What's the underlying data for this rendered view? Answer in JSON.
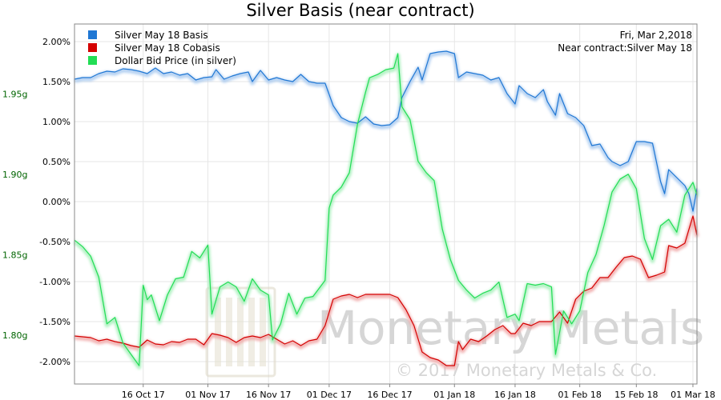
{
  "chart_data": {
    "type": "line",
    "title": "Silver Basis (near contract)",
    "info": {
      "date_line": "Fri, Mar 2,2018",
      "contract_line": "Near contract:Silver May 18"
    },
    "watermark": {
      "name": "Monetary Metals",
      "copyright": "© 2017 Monetary Metals & Co."
    },
    "x_ticks": [
      "16 Oct 17",
      "01 Nov 17",
      "16 Nov 17",
      "01 Dec 17",
      "16 Dec 17",
      "01 Jan 18",
      "16 Jan 18",
      "01 Feb 18",
      "15 Feb 18",
      "01 Mar 18"
    ],
    "x_tick_dates": [
      "2017-10-16",
      "2017-11-01",
      "2017-11-16",
      "2017-12-01",
      "2017-12-16",
      "2018-01-01",
      "2018-01-16",
      "2018-02-01",
      "2018-02-15",
      "2018-03-01"
    ],
    "x_range": [
      "2017-09-29",
      "2018-03-02"
    ],
    "y_left": {
      "ticks": [
        "2.00%",
        "1.50%",
        "1.00%",
        "0.50%",
        "0.00%",
        "-0.50%",
        "-1.00%",
        "-1.50%",
        "-2.00%"
      ],
      "tick_values": [
        2.0,
        1.5,
        1.0,
        0.5,
        0.0,
        -0.5,
        -1.0,
        -1.5,
        -2.0
      ],
      "range": [
        -2.28,
        2.22
      ],
      "color": "#000000"
    },
    "y_right_axis_left_side": {
      "ticks": [
        "1.95g",
        "1.90g",
        "1.85g",
        "1.80g"
      ],
      "tick_values": [
        1.95,
        1.9,
        1.85,
        1.8
      ],
      "range": [
        1.7696,
        1.9934
      ],
      "color": "#006400"
    },
    "grid": true,
    "legend": "top-left",
    "series": [
      {
        "name": "Silver May 18 Basis",
        "color": "#1f77d4",
        "glow": "#aacbf0",
        "axis": "left",
        "points": [
          [
            "2017-09-29",
            1.53
          ],
          [
            "2017-10-01",
            1.55
          ],
          [
            "2017-10-03",
            1.55
          ],
          [
            "2017-10-05",
            1.6
          ],
          [
            "2017-10-07",
            1.63
          ],
          [
            "2017-10-09",
            1.62
          ],
          [
            "2017-10-11",
            1.66
          ],
          [
            "2017-10-13",
            1.65
          ],
          [
            "2017-10-15",
            1.63
          ],
          [
            "2017-10-17",
            1.6
          ],
          [
            "2017-10-19",
            1.67
          ],
          [
            "2017-10-21",
            1.6
          ],
          [
            "2017-10-23",
            1.62
          ],
          [
            "2017-10-25",
            1.58
          ],
          [
            "2017-10-27",
            1.6
          ],
          [
            "2017-10-29",
            1.52
          ],
          [
            "2017-10-31",
            1.55
          ],
          [
            "2017-11-02",
            1.56
          ],
          [
            "2017-11-03",
            1.65
          ],
          [
            "2017-11-05",
            1.53
          ],
          [
            "2017-11-07",
            1.57
          ],
          [
            "2017-11-09",
            1.6
          ],
          [
            "2017-11-11",
            1.62
          ],
          [
            "2017-11-12",
            1.5
          ],
          [
            "2017-11-14",
            1.64
          ],
          [
            "2017-11-16",
            1.52
          ],
          [
            "2017-11-18",
            1.55
          ],
          [
            "2017-11-20",
            1.52
          ],
          [
            "2017-11-22",
            1.5
          ],
          [
            "2017-11-24",
            1.59
          ],
          [
            "2017-11-26",
            1.5
          ],
          [
            "2017-11-28",
            1.48
          ],
          [
            "2017-11-30",
            1.48
          ],
          [
            "2017-12-02",
            1.2
          ],
          [
            "2017-12-04",
            1.05
          ],
          [
            "2017-12-06",
            1.0
          ],
          [
            "2017-12-08",
            0.98
          ],
          [
            "2017-12-10",
            1.06
          ],
          [
            "2017-12-12",
            0.97
          ],
          [
            "2017-12-14",
            0.95
          ],
          [
            "2017-12-16",
            0.96
          ],
          [
            "2017-12-18",
            1.05
          ],
          [
            "2017-12-19",
            1.3
          ],
          [
            "2017-12-21",
            1.5
          ],
          [
            "2017-12-23",
            1.68
          ],
          [
            "2017-12-24",
            1.52
          ],
          [
            "2017-12-26",
            1.85
          ],
          [
            "2017-12-28",
            1.87
          ],
          [
            "2017-12-30",
            1.88
          ],
          [
            "2018-01-01",
            1.85
          ],
          [
            "2018-01-02",
            1.55
          ],
          [
            "2018-01-04",
            1.62
          ],
          [
            "2018-01-06",
            1.6
          ],
          [
            "2018-01-08",
            1.58
          ],
          [
            "2018-01-10",
            1.52
          ],
          [
            "2018-01-12",
            1.55
          ],
          [
            "2018-01-14",
            1.35
          ],
          [
            "2018-01-16",
            1.22
          ],
          [
            "2018-01-17",
            1.45
          ],
          [
            "2018-01-19",
            1.35
          ],
          [
            "2018-01-21",
            1.3
          ],
          [
            "2018-01-23",
            1.4
          ],
          [
            "2018-01-24",
            1.25
          ],
          [
            "2018-01-26",
            1.08
          ],
          [
            "2018-01-27",
            1.35
          ],
          [
            "2018-01-29",
            1.1
          ],
          [
            "2018-01-31",
            1.05
          ],
          [
            "2018-02-02",
            0.95
          ],
          [
            "2018-02-04",
            0.7
          ],
          [
            "2018-02-06",
            0.72
          ],
          [
            "2018-02-08",
            0.55
          ],
          [
            "2018-02-09",
            0.5
          ],
          [
            "2018-02-11",
            0.45
          ],
          [
            "2018-02-13",
            0.5
          ],
          [
            "2018-02-15",
            0.75
          ],
          [
            "2018-02-17",
            0.75
          ],
          [
            "2018-02-19",
            0.73
          ],
          [
            "2018-02-21",
            0.25
          ],
          [
            "2018-02-22",
            0.1
          ],
          [
            "2018-02-23",
            0.4
          ],
          [
            "2018-02-25",
            0.3
          ],
          [
            "2018-02-27",
            0.2
          ],
          [
            "2018-02-28",
            0.1
          ],
          [
            "2018-03-01",
            -0.12
          ],
          [
            "2018-03-02",
            0.17
          ]
        ]
      },
      {
        "name": "Silver May 18 Cobasis",
        "color": "#d40000",
        "glow": "#f0a8a8",
        "axis": "left",
        "points": [
          [
            "2017-09-29",
            -1.68
          ],
          [
            "2017-10-01",
            -1.69
          ],
          [
            "2017-10-03",
            -1.7
          ],
          [
            "2017-10-05",
            -1.74
          ],
          [
            "2017-10-07",
            -1.72
          ],
          [
            "2017-10-09",
            -1.75
          ],
          [
            "2017-10-11",
            -1.77
          ],
          [
            "2017-10-13",
            -1.8
          ],
          [
            "2017-10-15",
            -1.82
          ],
          [
            "2017-10-17",
            -1.73
          ],
          [
            "2017-10-19",
            -1.78
          ],
          [
            "2017-10-21",
            -1.79
          ],
          [
            "2017-10-23",
            -1.75
          ],
          [
            "2017-10-25",
            -1.76
          ],
          [
            "2017-10-27",
            -1.72
          ],
          [
            "2017-10-29",
            -1.72
          ],
          [
            "2017-10-31",
            -1.79
          ],
          [
            "2017-11-02",
            -1.65
          ],
          [
            "2017-11-04",
            -1.67
          ],
          [
            "2017-11-06",
            -1.7
          ],
          [
            "2017-11-08",
            -1.76
          ],
          [
            "2017-11-10",
            -1.7
          ],
          [
            "2017-11-12",
            -1.68
          ],
          [
            "2017-11-14",
            -1.7
          ],
          [
            "2017-11-16",
            -1.66
          ],
          [
            "2017-11-18",
            -1.72
          ],
          [
            "2017-11-20",
            -1.78
          ],
          [
            "2017-11-22",
            -1.74
          ],
          [
            "2017-11-24",
            -1.8
          ],
          [
            "2017-11-26",
            -1.74
          ],
          [
            "2017-11-28",
            -1.72
          ],
          [
            "2017-11-30",
            -1.55
          ],
          [
            "2017-12-02",
            -1.22
          ],
          [
            "2017-12-04",
            -1.18
          ],
          [
            "2017-12-06",
            -1.16
          ],
          [
            "2017-12-08",
            -1.2
          ],
          [
            "2017-12-10",
            -1.16
          ],
          [
            "2017-12-12",
            -1.16
          ],
          [
            "2017-12-14",
            -1.16
          ],
          [
            "2017-12-16",
            -1.16
          ],
          [
            "2017-12-18",
            -1.2
          ],
          [
            "2017-12-20",
            -1.35
          ],
          [
            "2017-12-22",
            -1.55
          ],
          [
            "2017-12-24",
            -1.88
          ],
          [
            "2017-12-26",
            -1.95
          ],
          [
            "2017-12-28",
            -1.98
          ],
          [
            "2017-12-30",
            -2.05
          ],
          [
            "2018-01-01",
            -2.05
          ],
          [
            "2018-01-02",
            -1.75
          ],
          [
            "2018-01-03",
            -1.85
          ],
          [
            "2018-01-05",
            -1.72
          ],
          [
            "2018-01-07",
            -1.75
          ],
          [
            "2018-01-09",
            -1.68
          ],
          [
            "2018-01-11",
            -1.6
          ],
          [
            "2018-01-13",
            -1.55
          ],
          [
            "2018-01-15",
            -1.65
          ],
          [
            "2018-01-16",
            -1.65
          ],
          [
            "2018-01-18",
            -1.52
          ],
          [
            "2018-01-20",
            -1.55
          ],
          [
            "2018-01-22",
            -1.5
          ],
          [
            "2018-01-24",
            -1.5
          ],
          [
            "2018-01-25",
            -1.5
          ],
          [
            "2018-01-27",
            -1.38
          ],
          [
            "2018-01-29",
            -1.52
          ],
          [
            "2018-01-31",
            -1.22
          ],
          [
            "2018-02-02",
            -1.12
          ],
          [
            "2018-02-04",
            -1.08
          ],
          [
            "2018-02-06",
            -0.95
          ],
          [
            "2018-02-08",
            -0.95
          ],
          [
            "2018-02-10",
            -0.82
          ],
          [
            "2018-02-12",
            -0.7
          ],
          [
            "2018-02-14",
            -0.68
          ],
          [
            "2018-02-16",
            -0.72
          ],
          [
            "2018-02-18",
            -0.95
          ],
          [
            "2018-02-20",
            -0.92
          ],
          [
            "2018-02-22",
            -0.88
          ],
          [
            "2018-02-23",
            -0.55
          ],
          [
            "2018-02-25",
            -0.58
          ],
          [
            "2018-02-27",
            -0.52
          ],
          [
            "2018-02-28",
            -0.35
          ],
          [
            "2018-03-01",
            -0.18
          ],
          [
            "2018-03-02",
            -0.42
          ]
        ]
      },
      {
        "name": "Dollar Bid Price (in silver)",
        "color": "#22dd55",
        "glow": "#a8f0bc",
        "axis": "right",
        "points": [
          [
            "2017-09-29",
            1.859
          ],
          [
            "2017-10-01",
            1.855
          ],
          [
            "2017-10-03",
            1.849
          ],
          [
            "2017-10-05",
            1.836
          ],
          [
            "2017-10-07",
            1.807
          ],
          [
            "2017-10-09",
            1.811
          ],
          [
            "2017-10-11",
            1.795
          ],
          [
            "2017-10-13",
            1.788
          ],
          [
            "2017-10-15",
            1.781
          ],
          [
            "2017-10-16",
            1.831
          ],
          [
            "2017-10-17",
            1.822
          ],
          [
            "2017-10-18",
            1.825
          ],
          [
            "2017-10-20",
            1.809
          ],
          [
            "2017-10-22",
            1.825
          ],
          [
            "2017-10-24",
            1.835
          ],
          [
            "2017-10-26",
            1.836
          ],
          [
            "2017-10-28",
            1.852
          ],
          [
            "2017-10-30",
            1.848
          ],
          [
            "2017-11-01",
            1.856
          ],
          [
            "2017-11-02",
            1.813
          ],
          [
            "2017-11-04",
            1.83
          ],
          [
            "2017-11-06",
            1.833
          ],
          [
            "2017-11-08",
            1.83
          ],
          [
            "2017-11-10",
            1.821
          ],
          [
            "2017-11-12",
            1.835
          ],
          [
            "2017-11-14",
            1.828
          ],
          [
            "2017-11-16",
            1.825
          ],
          [
            "2017-11-17",
            1.797
          ],
          [
            "2017-11-19",
            1.807
          ],
          [
            "2017-11-21",
            1.826
          ],
          [
            "2017-11-23",
            1.813
          ],
          [
            "2017-11-25",
            1.823
          ],
          [
            "2017-11-27",
            1.824
          ],
          [
            "2017-11-30",
            1.834
          ],
          [
            "2017-12-01",
            1.879
          ],
          [
            "2017-12-02",
            1.887
          ],
          [
            "2017-12-04",
            1.892
          ],
          [
            "2017-12-06",
            1.901
          ],
          [
            "2017-12-08",
            1.931
          ],
          [
            "2017-12-10",
            1.951
          ],
          [
            "2017-12-11",
            1.96
          ],
          [
            "2017-12-13",
            1.962
          ],
          [
            "2017-12-15",
            1.965
          ],
          [
            "2017-12-17",
            1.966
          ],
          [
            "2017-12-18",
            1.975
          ],
          [
            "2017-12-19",
            1.942
          ],
          [
            "2017-12-21",
            1.934
          ],
          [
            "2017-12-23",
            1.908
          ],
          [
            "2017-12-25",
            1.901
          ],
          [
            "2017-12-27",
            1.896
          ],
          [
            "2017-12-29",
            1.866
          ],
          [
            "2017-12-31",
            1.847
          ],
          [
            "2018-01-02",
            1.834
          ],
          [
            "2018-01-04",
            1.828
          ],
          [
            "2018-01-06",
            1.823
          ],
          [
            "2018-01-08",
            1.826
          ],
          [
            "2018-01-10",
            1.828
          ],
          [
            "2018-01-12",
            1.833
          ],
          [
            "2018-01-14",
            1.811
          ],
          [
            "2018-01-16",
            1.813
          ],
          [
            "2018-01-17",
            1.809
          ],
          [
            "2018-01-19",
            1.832
          ],
          [
            "2018-01-21",
            1.831
          ],
          [
            "2018-01-23",
            1.832
          ],
          [
            "2018-01-25",
            1.83
          ],
          [
            "2018-01-26",
            1.788
          ],
          [
            "2018-01-28",
            1.815
          ],
          [
            "2018-01-30",
            1.807
          ],
          [
            "2018-02-01",
            1.815
          ],
          [
            "2018-02-03",
            1.839
          ],
          [
            "2018-02-05",
            1.85
          ],
          [
            "2018-02-07",
            1.868
          ],
          [
            "2018-02-09",
            1.889
          ],
          [
            "2018-02-11",
            1.897
          ],
          [
            "2018-02-13",
            1.9
          ],
          [
            "2018-02-15",
            1.891
          ],
          [
            "2018-02-17",
            1.86
          ],
          [
            "2018-02-19",
            1.847
          ],
          [
            "2018-02-21",
            1.868
          ],
          [
            "2018-02-23",
            1.872
          ],
          [
            "2018-02-25",
            1.864
          ],
          [
            "2018-02-27",
            1.887
          ],
          [
            "2018-03-01",
            1.895
          ],
          [
            "2018-03-02",
            1.887
          ]
        ]
      }
    ]
  }
}
